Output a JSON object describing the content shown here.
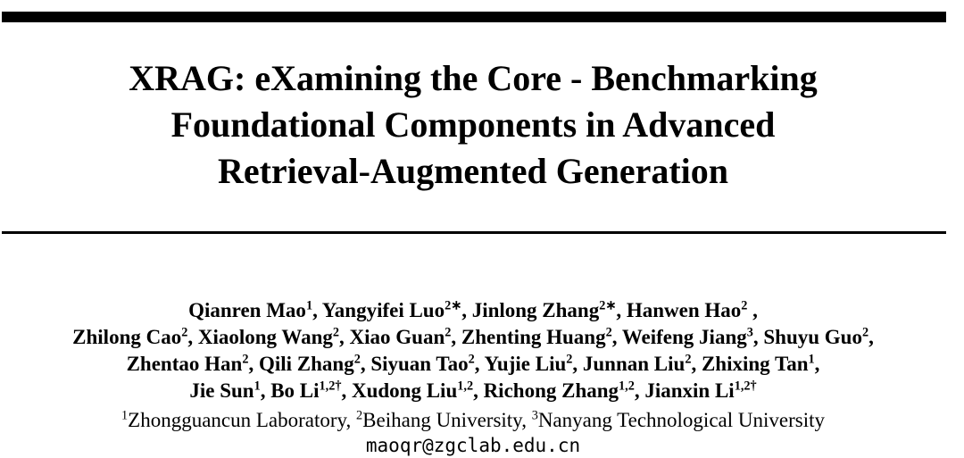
{
  "paper": {
    "title_lines": [
      "XRAG: eXamining the Core - Benchmarking",
      "Foundational Components in Advanced",
      "Retrieval-Augmented Generation"
    ],
    "author_lines": [
      [
        {
          "name": "Qianren Mao",
          "sup": "1",
          "trail": ", "
        },
        {
          "name": "Yangyifei Luo",
          "sup": "2∗",
          "trail": ", "
        },
        {
          "name": "Jinlong Zhang",
          "sup": "2∗",
          "trail": ", "
        },
        {
          "name": "Hanwen Hao",
          "sup": "2",
          "trail": " ,"
        }
      ],
      [
        {
          "name": "Zhilong Cao",
          "sup": "2",
          "trail": ", "
        },
        {
          "name": "Xiaolong Wang",
          "sup": "2",
          "trail": ", "
        },
        {
          "name": "Xiao Guan",
          "sup": "2",
          "trail": ", "
        },
        {
          "name": "Zhenting Huang",
          "sup": "2",
          "trail": ", "
        },
        {
          "name": "Weifeng Jiang",
          "sup": "3",
          "trail": ", "
        },
        {
          "name": "Shuyu Guo",
          "sup": "2",
          "trail": ","
        }
      ],
      [
        {
          "name": "Zhentao Han",
          "sup": "2",
          "trail": ", "
        },
        {
          "name": "Qili Zhang",
          "sup": "2",
          "trail": ", "
        },
        {
          "name": "Siyuan Tao",
          "sup": "2",
          "trail": ", "
        },
        {
          "name": "Yujie Liu",
          "sup": "2",
          "trail": ", "
        },
        {
          "name": "Junnan Liu",
          "sup": "2",
          "trail": ", "
        },
        {
          "name": "Zhixing Tan",
          "sup": "1",
          "trail": ","
        }
      ],
      [
        {
          "name": "Jie Sun",
          "sup": "1",
          "trail": ", "
        },
        {
          "name": "Bo Li",
          "sup": "1,2†",
          "trail": ", "
        },
        {
          "name": "Xudong Liu",
          "sup": "1,2",
          "trail": ", "
        },
        {
          "name": "Richong Zhang",
          "sup": "1,2",
          "trail": ", "
        },
        {
          "name": "Jianxin Li",
          "sup": "1,2†",
          "trail": ""
        }
      ]
    ],
    "affiliations": [
      {
        "sup": "1",
        "name": "Zhongguancun Laboratory",
        "trail": ", "
      },
      {
        "sup": "2",
        "name": "Beihang University",
        "trail": ", "
      },
      {
        "sup": "3",
        "name": "Nanyang Technological University",
        "trail": ""
      }
    ],
    "email": "maoqr@zgclab.edu.cn",
    "colors": {
      "text": "#000000",
      "background": "#ffffff",
      "divider": "#000000"
    }
  }
}
